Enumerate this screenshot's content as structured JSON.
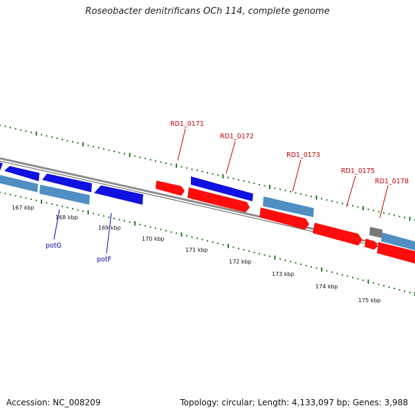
{
  "title": "Roseobacter denitrificans OCh 114, complete genome",
  "footer": {
    "accession": "Accession: NC_008209",
    "summary": "Topology: circular; Length: 4,133,097 bp; Genes: 3,988"
  },
  "colors": {
    "backbone": "#8a8a8a",
    "tick": "#1a7a1a",
    "forward_gene": "#1010e0",
    "reverse_gene": "#ff0d0d",
    "light_blue_gene": "#4f8fc3",
    "grey_gene": "#777777",
    "red_label": "#c00000",
    "blue_label": "#0000aa"
  },
  "scale_labels": [
    "167 kbp",
    "168 kbp",
    "169 kbp",
    "170 kbp",
    "171 kbp",
    "172 kbp",
    "173 kbp",
    "174 kbp",
    "175 kbp"
  ],
  "gene_labels": [
    {
      "text": "RD1_0171",
      "color": "red"
    },
    {
      "text": "RD1_0172",
      "color": "red"
    },
    {
      "text": "RD1_0173",
      "color": "red"
    },
    {
      "text": "RD1_0175",
      "color": "red"
    },
    {
      "text": "RD1_0178",
      "color": "red"
    },
    {
      "text": "potG",
      "color": "blue"
    },
    {
      "text": "potF",
      "color": "blue"
    }
  ]
}
